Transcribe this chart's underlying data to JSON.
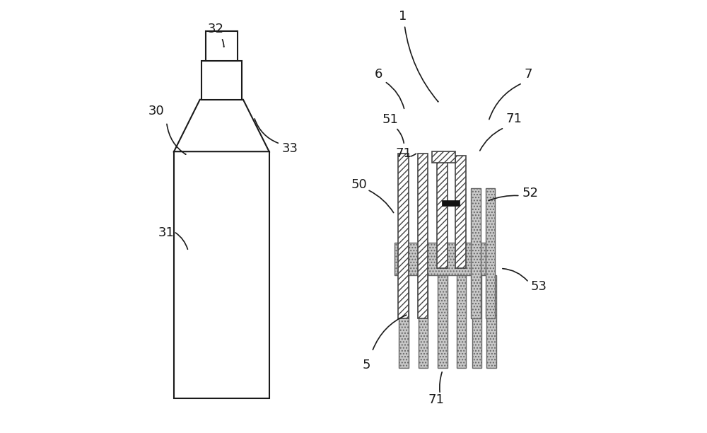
{
  "bg_color": "#ffffff",
  "line_color": "#1a1a1a"
}
